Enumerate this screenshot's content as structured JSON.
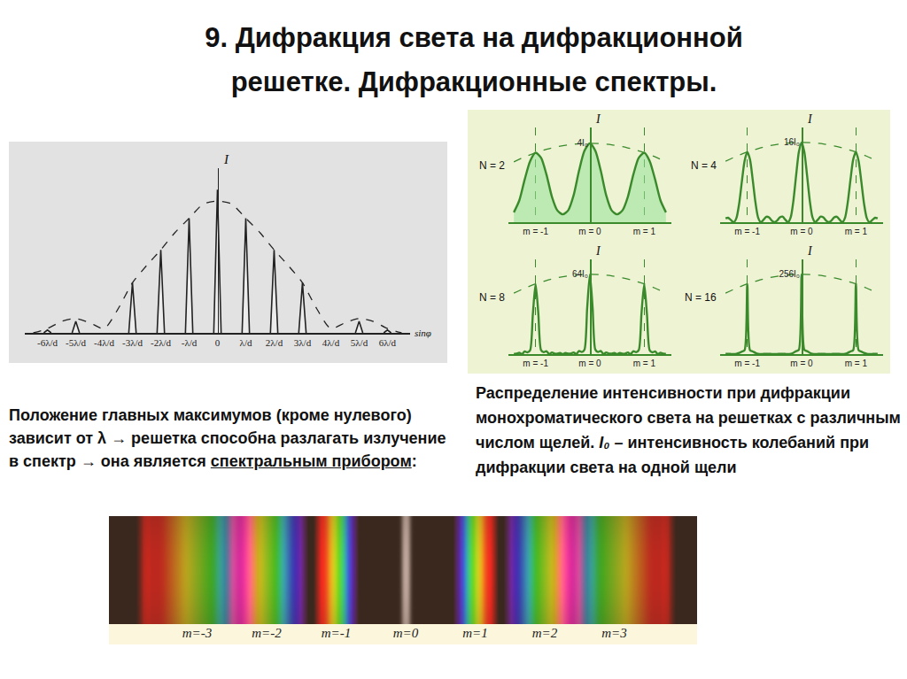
{
  "title": [
    "9. Дифракция света на дифракционной",
    "решетке. Дифракционные спектры."
  ],
  "left_text": {
    "before": "Положение главных максимумов (кроме нулевого) зависит от λ → решетка способна разлагать излучение в спектр → она является ",
    "underlined": "спектральным прибором",
    "after": ":"
  },
  "right_caption": {
    "before": "Распределение интенсивности при дифракции монохроматического света на решетках с различным числом щелей. ",
    "symbol": "I₀",
    "after": " – интенсивность колебаний при дифракции света на одной щели"
  },
  "chart_data": [
    {
      "type": "line",
      "xlabel": "sinφ",
      "ylabel": "I",
      "xlim": [
        -6.8,
        6.8
      ],
      "ylim": [
        0,
        1.15
      ],
      "xticks": [
        {
          "value": -6,
          "label": "-6λ/d"
        },
        {
          "value": -5,
          "label": "-5λ/d"
        },
        {
          "value": -4,
          "label": "-4λ/d"
        },
        {
          "value": -3,
          "label": "-3λ/d"
        },
        {
          "value": -2,
          "label": "-2λ/d"
        },
        {
          "value": -1,
          "label": "-λ/d"
        },
        0,
        {
          "value": 1,
          "label": "λ/d"
        },
        {
          "value": 2,
          "label": "2λ/d"
        },
        {
          "value": 3,
          "label": "3λ/d"
        },
        {
          "value": 4,
          "label": "4λ/d"
        },
        {
          "value": 5,
          "label": "5λ/d"
        },
        {
          "value": 6,
          "label": "6λ/d"
        }
      ],
      "tick_labels": "x",
      "color": "#222222",
      "series": [
        {
          "type": "peaks",
          "x": [
            -6,
            -5,
            -3,
            -2,
            -1,
            0,
            1,
            2,
            3,
            5,
            6
          ],
          "values": [
            0.02,
            0.08,
            0.35,
            0.58,
            0.8,
            1.0,
            0.8,
            0.58,
            0.35,
            0.08,
            0.02
          ]
        },
        {
          "type": "line",
          "line_style": "dashed",
          "x": [
            -6.5,
            -6,
            -5.5,
            -5,
            -4.5,
            -4,
            -3.5,
            -3,
            -2.5,
            -2,
            -1.5,
            -1,
            -0.5,
            0,
            0.5,
            1,
            1.5,
            2,
            2.5,
            3,
            3.5,
            4,
            4.5,
            5,
            5.5,
            6,
            6.5
          ],
          "values": [
            0,
            0.03,
            0.08,
            0.1,
            0.07,
            0.03,
            0.17,
            0.35,
            0.47,
            0.58,
            0.7,
            0.8,
            0.9,
            0.92,
            0.9,
            0.8,
            0.7,
            0.58,
            0.47,
            0.35,
            0.17,
            0.03,
            0.07,
            0.1,
            0.08,
            0.03,
            0
          ]
        }
      ]
    },
    {
      "type": "line",
      "title": "N = 2",
      "ylabel": "I",
      "xlim": [
        -1.5,
        1.5
      ],
      "ylim": [
        0,
        4.8
      ],
      "xticks": [
        {
          "value": -1,
          "label": "m = -1"
        },
        {
          "value": 0,
          "label": "m = 0"
        },
        {
          "value": 1,
          "label": "m = 1"
        }
      ],
      "yticks": [
        {
          "value": 4,
          "label": "4I₀"
        }
      ],
      "grid": "x",
      "color": "#3a8a2c",
      "series": [
        {
          "type": "area",
          "x": [
            -1.4,
            -1.3,
            -1.2,
            -1.1,
            -1,
            -0.9,
            -0.8,
            -0.7,
            -0.6,
            -0.5,
            -0.4,
            -0.3,
            -0.2,
            -0.1,
            0,
            0.1,
            0.2,
            0.3,
            0.4,
            0.5,
            0.6,
            0.7,
            0.8,
            0.9,
            1,
            1.1,
            1.2,
            1.3,
            1.4
          ],
          "values": [
            0.5,
            1.1,
            2.17,
            3.1,
            3.52,
            3.27,
            2.42,
            1.3,
            0.6,
            0.4,
            0.6,
            1.36,
            2.61,
            3.62,
            4,
            3.62,
            2.61,
            1.36,
            0.6,
            0.4,
            0.6,
            1.3,
            2.42,
            3.27,
            3.52,
            3.1,
            2.17,
            1.1,
            0.5
          ]
        },
        {
          "type": "line",
          "line_style": "dashed",
          "x": [
            -1.4,
            -1.2,
            -1,
            -0.8,
            -0.6,
            -0.4,
            -0.2,
            0,
            0.2,
            0.4,
            0.6,
            0.8,
            1,
            1.2,
            1.4
          ],
          "values": [
            3.06,
            3.31,
            3.52,
            3.69,
            3.83,
            3.92,
            3.98,
            4,
            3.98,
            3.92,
            3.83,
            3.69,
            3.52,
            3.31,
            3.06
          ]
        }
      ]
    },
    {
      "type": "line",
      "title": "N = 4",
      "ylabel": "I",
      "xlim": [
        -1.5,
        1.5
      ],
      "ylim": [
        0,
        19
      ],
      "xticks": [
        {
          "value": -1,
          "label": "m = -1"
        },
        {
          "value": 0,
          "label": "m = 0"
        },
        {
          "value": 1,
          "label": "m = 1"
        }
      ],
      "yticks": [
        {
          "value": 16,
          "label": "16I₀"
        }
      ],
      "grid": "x",
      "color": "#3a8a2c",
      "series": [
        {
          "type": "line",
          "x": [
            -1.4,
            -1.35,
            -1.3,
            -1.25,
            -1.2,
            -1.15,
            -1.1,
            -1.05,
            -1,
            -0.95,
            -0.9,
            -0.85,
            -0.8,
            -0.75,
            -0.7,
            -0.65,
            -0.6,
            -0.55,
            -0.5,
            -0.45,
            -0.4,
            -0.35,
            -0.3,
            -0.25,
            -0.2,
            -0.15,
            -0.1,
            -0.05,
            0,
            0.05,
            0.1,
            0.15,
            0.2,
            0.25,
            0.3,
            0.35,
            0.4,
            0.45,
            0.5,
            0.55,
            0.6,
            0.65,
            0.7,
            0.75,
            0.8,
            0.85,
            0.9,
            0.95,
            1,
            1.05,
            1.1,
            1.15,
            1.2,
            1.25,
            1.3,
            1.35,
            1.4
          ],
          "values": [
            0.77,
            0.89,
            0.42,
            0,
            0.83,
            3.69,
            8.1,
            12.26,
            14.08,
            12.58,
            8.55,
            4.01,
            0.92,
            0,
            0.5,
            1.08,
            0.96,
            0.34,
            0,
            0.34,
            0.98,
            1.12,
            0.52,
            0,
            1,
            4.38,
            9.46,
            14.12,
            16,
            14.12,
            9.46,
            4.38,
            1,
            0,
            0.52,
            1.12,
            0.98,
            0.34,
            0,
            0.34,
            0.96,
            1.08,
            0.5,
            0,
            0.92,
            4.01,
            8.55,
            12.58,
            14.08,
            12.26,
            8.1,
            3.69,
            0.83,
            0,
            0.42,
            0.89,
            0.77
          ]
        },
        {
          "type": "line",
          "line_style": "dashed",
          "x": [
            -1.4,
            -1.2,
            -1,
            -0.8,
            -0.6,
            -0.4,
            -0.2,
            0,
            0.2,
            0.4,
            0.6,
            0.8,
            1,
            1.2,
            1.4
          ],
          "values": [
            12.24,
            13.23,
            14.08,
            14.77,
            15.31,
            15.7,
            15.92,
            16,
            15.92,
            15.7,
            15.31,
            14.77,
            14.08,
            13.23,
            12.24
          ]
        }
      ]
    },
    {
      "type": "line",
      "title": "N = 8",
      "ylabel": "I",
      "xlim": [
        -1.5,
        1.5
      ],
      "ylim": [
        0,
        76
      ],
      "xticks": [
        {
          "value": -1,
          "label": "m = -1"
        },
        {
          "value": 0,
          "label": "m = 0"
        },
        {
          "value": 1,
          "label": "m = 1"
        }
      ],
      "yticks": [
        {
          "value": 64,
          "label": "64I₀"
        }
      ],
      "grid": "x",
      "color": "#3a8a2c",
      "series": [
        {
          "type": "line",
          "x": [
            -1.4,
            -1.35,
            -1.3,
            -1.25,
            -1.2,
            -1.15,
            -1.1,
            -1.05,
            -1,
            -0.95,
            -0.9,
            -0.85,
            -0.8,
            -0.75,
            -0.7,
            -0.65,
            -0.6,
            -0.55,
            -0.5,
            -0.45,
            -0.4,
            -0.35,
            -0.3,
            -0.25,
            -0.2,
            -0.15,
            -0.1,
            -0.05,
            0,
            0.05,
            0.1,
            0.15,
            0.2,
            0.25,
            0.3,
            0.35,
            0.4,
            0.45,
            0.5,
            0.55,
            0.6,
            0.65,
            0.7,
            0.75,
            0.8,
            0.85,
            0.9,
            0.95,
            1,
            1.05,
            1.1,
            1.15,
            1.2,
            1.25,
            1.3,
            1.35,
            1.4
          ],
          "values": [
            0.29,
            0.34,
            1.1,
            0,
            2.17,
            1.41,
            3.1,
            32.08,
            56.32,
            32.93,
            3.27,
            1.53,
            2.42,
            0,
            1.3,
            0.41,
            0.36,
            0.9,
            0,
            0.91,
            0.37,
            0.43,
            1.36,
            0,
            2.61,
            1.67,
            3.62,
            36.96,
            64,
            36.96,
            3.62,
            1.67,
            2.61,
            0,
            1.36,
            0.43,
            0.37,
            0.91,
            0,
            0.9,
            0.36,
            0.41,
            1.3,
            0,
            2.42,
            1.53,
            3.27,
            32.93,
            56.32,
            32.08,
            3.1,
            1.41,
            2.17,
            0,
            1.1,
            0.34,
            0.29
          ]
        },
        {
          "type": "line",
          "line_style": "dashed",
          "x": [
            -1.4,
            -1.2,
            -1,
            -0.8,
            -0.6,
            -0.4,
            -0.2,
            0,
            0.2,
            0.4,
            0.6,
            0.8,
            1,
            1.2,
            1.4
          ],
          "values": [
            48.96,
            52.93,
            56.32,
            59.07,
            61.25,
            62.78,
            63.68,
            64,
            63.68,
            62.78,
            61.25,
            59.07,
            56.32,
            52.93,
            48.96
          ]
        }
      ]
    },
    {
      "type": "line",
      "title": "N = 16",
      "ylabel": "I",
      "xlim": [
        -1.5,
        1.5
      ],
      "ylim": [
        0,
        304
      ],
      "xticks": [
        {
          "value": -1,
          "label": "m = -1"
        },
        {
          "value": 0,
          "label": "m = 0"
        },
        {
          "value": 1,
          "label": "m = 1"
        }
      ],
      "yticks": [
        {
          "value": 256,
          "label": "256I₀"
        }
      ],
      "grid": "x",
      "color": "#3a8a2c",
      "series": [
        {
          "type": "line",
          "x": [
            -1.4,
            -1.35,
            -1.3,
            -1.25,
            -1.2,
            -1.15,
            -1.1,
            -1.05,
            -1,
            -0.95,
            -0.9,
            -0.85,
            -0.8,
            -0.75,
            -0.7,
            -0.65,
            -0.6,
            -0.55,
            -0.5,
            -0.45,
            -0.4,
            -0.35,
            -0.3,
            -0.25,
            -0.2,
            -0.15,
            -0.1,
            -0.05,
            0,
            0.05,
            0.1,
            0.15,
            0.2,
            0.25,
            0.3,
            0.35,
            0.4,
            0.45,
            0.5,
            0.55,
            0.6,
            0.65,
            0.7,
            0.75,
            0.8,
            0.85,
            0.9,
            0.95,
            1,
            1.05,
            1.1,
            1.15,
            1.2,
            1.25,
            1.3,
            1.35,
            1.4
          ],
          "values": [
            0.77,
            0.89,
            0.42,
            0,
            0.83,
            3.69,
            8.1,
            12.26,
            225.28,
            12.58,
            8.55,
            4.01,
            0.92,
            0,
            0.5,
            1.08,
            0.96,
            0.34,
            0,
            0.34,
            0.98,
            1.12,
            0.52,
            0,
            1,
            4.38,
            9.46,
            14.12,
            256,
            14.12,
            9.46,
            4.38,
            1,
            0,
            0.52,
            1.12,
            0.98,
            0.34,
            0,
            0.34,
            0.96,
            1.08,
            0.5,
            0,
            0.92,
            4.01,
            8.55,
            12.58,
            225.28,
            12.26,
            8.1,
            3.69,
            0.83,
            0,
            0.42,
            0.89,
            0.77
          ]
        },
        {
          "type": "line",
          "line_style": "dashed",
          "x": [
            -1.4,
            -1.2,
            -1,
            -0.8,
            -0.6,
            -0.4,
            -0.2,
            0,
            0.2,
            0.4,
            0.6,
            0.8,
            1,
            1.2,
            1.4
          ],
          "values": [
            195.84,
            211.71,
            225.28,
            236.29,
            244.99,
            251.14,
            254.72,
            256,
            254.72,
            251.14,
            244.99,
            236.29,
            225.28,
            211.71,
            195.84
          ]
        }
      ]
    }
  ],
  "spectrum": {
    "orders": [
      -3,
      -2,
      -1,
      0,
      1,
      2,
      3
    ],
    "labels": [
      "m=-3",
      "m=-2",
      "m=-1",
      "m=0",
      "m=1",
      "m=2",
      "m=3"
    ]
  }
}
